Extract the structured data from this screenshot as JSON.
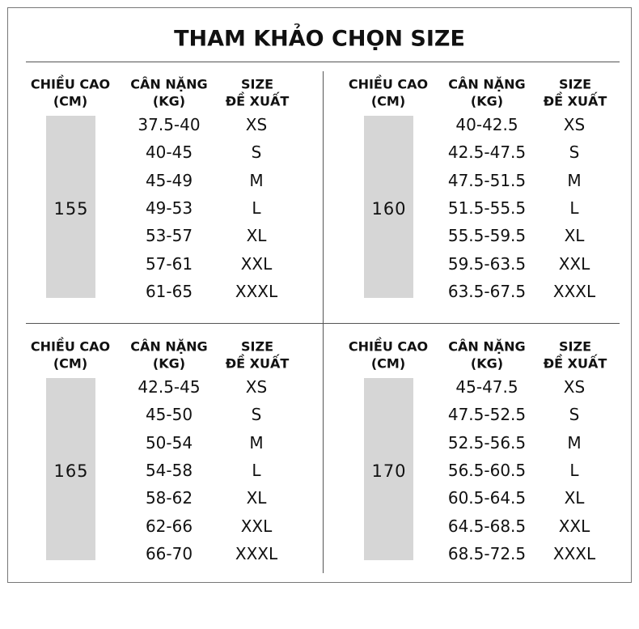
{
  "header": {
    "title": "THAM KHẢO CHỌN SIZE"
  },
  "columns": [
    [
      "CHIỀU CAO",
      "(CM)"
    ],
    [
      "CÂN NẶNG",
      "(KG)"
    ],
    [
      "SIZE",
      "ĐỀ XUẤT"
    ]
  ],
  "tables": [
    {
      "height": "155",
      "rows": [
        [
          "37.5-40",
          "XS"
        ],
        [
          "40-45",
          "S"
        ],
        [
          "45-49",
          "M"
        ],
        [
          "49-53",
          "L"
        ],
        [
          "53-57",
          "XL"
        ],
        [
          "57-61",
          "XXL"
        ],
        [
          "61-65",
          "XXXL"
        ]
      ]
    },
    {
      "height": "160",
      "rows": [
        [
          "40-42.5",
          "XS"
        ],
        [
          "42.5-47.5",
          "S"
        ],
        [
          "47.5-51.5",
          "M"
        ],
        [
          "51.5-55.5",
          "L"
        ],
        [
          "55.5-59.5",
          "XL"
        ],
        [
          "59.5-63.5",
          "XXL"
        ],
        [
          "63.5-67.5",
          "XXXL"
        ]
      ]
    },
    {
      "height": "165",
      "rows": [
        [
          "42.5-45",
          "XS"
        ],
        [
          "45-50",
          "S"
        ],
        [
          "50-54",
          "M"
        ],
        [
          "54-58",
          "L"
        ],
        [
          "58-62",
          "XL"
        ],
        [
          "62-66",
          "XXL"
        ],
        [
          "66-70",
          "XXXL"
        ]
      ]
    },
    {
      "height": "170",
      "rows": [
        [
          "45-47.5",
          "XS"
        ],
        [
          "47.5-52.5",
          "S"
        ],
        [
          "52.5-56.5",
          "M"
        ],
        [
          "56.5-60.5",
          "L"
        ],
        [
          "60.5-64.5",
          "XL"
        ],
        [
          "64.5-68.5",
          "XXL"
        ],
        [
          "68.5-72.5",
          "XXXL"
        ]
      ]
    }
  ]
}
